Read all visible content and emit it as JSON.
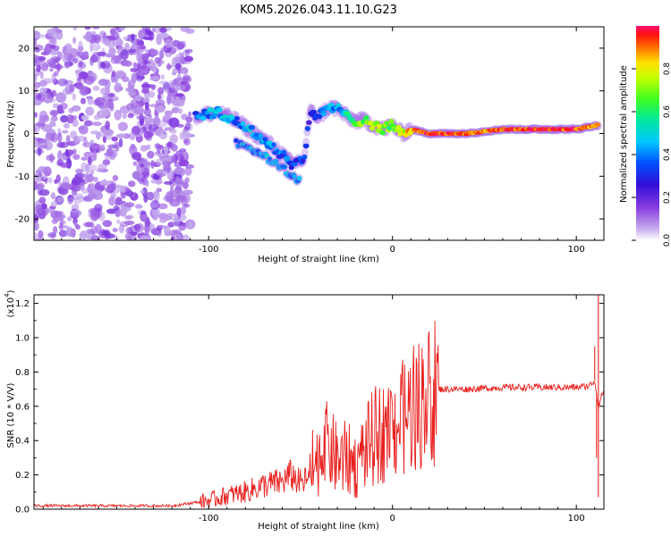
{
  "title": "KOM5.2026.043.11.10.G23",
  "colors": {
    "accent_line": "#e8201e",
    "axis": "#000000",
    "spec_weak": "#b58ee8",
    "spec_mid": "#6a18d8"
  },
  "chart_data": [
    {
      "type": "heatmap",
      "name": "spectrogram",
      "title": "KOM5.2026.043.11.10.G23",
      "xlabel": "Height of straight line (km)",
      "ylabel": "Frequency (Hz)",
      "xlim": [
        -195,
        115
      ],
      "ylim": [
        -25,
        25
      ],
      "xticks": [
        -100,
        0,
        100
      ],
      "yticks": [
        -20,
        -10,
        0,
        10,
        20
      ],
      "xtick_labels": [
        "-100",
        "0",
        "100"
      ],
      "ytick_labels": [
        "-20",
        "-10",
        "0",
        "10",
        "20"
      ],
      "colorbar": {
        "label": "Normalized spectral amplitude",
        "range": [
          0,
          1
        ],
        "ticks": [
          0.0,
          0.2,
          0.4,
          0.6,
          0.8
        ],
        "tick_labels": [
          "0.0",
          "0.2",
          "0.4",
          "0.6",
          "0.8"
        ]
      },
      "noise_region_x": [
        -195,
        -110
      ],
      "signal_track": {
        "x": [
          -107,
          -95,
          -85,
          -75,
          -65,
          -55,
          -48,
          -45,
          -40,
          -35,
          -30,
          -25,
          -20,
          -15,
          -10,
          -5,
          0,
          5,
          10,
          20,
          40,
          60,
          80,
          100,
          112
        ],
        "freq": [
          4,
          5,
          3,
          0,
          -3,
          -7,
          -6,
          5,
          4,
          6,
          6,
          4,
          3,
          3,
          2,
          1,
          2,
          0,
          1,
          0,
          0,
          1,
          1,
          1,
          2
        ],
        "amplitude": [
          0.35,
          0.45,
          0.4,
          0.45,
          0.4,
          0.35,
          0.3,
          0.3,
          0.35,
          0.4,
          0.4,
          0.55,
          0.65,
          0.7,
          0.75,
          0.7,
          0.65,
          0.75,
          0.85,
          0.95,
          0.9,
          0.9,
          0.95,
          0.95,
          0.8
        ]
      },
      "secondary_track": {
        "x": [
          -85,
          -70,
          -60,
          -55,
          -50
        ],
        "freq": [
          -2,
          -5,
          -8,
          -10,
          -11
        ]
      }
    },
    {
      "type": "line",
      "name": "snr",
      "xlabel": "Height of straight line (km)",
      "ylabel": "SNR (10 * V/V)",
      "scale_label": "(x10",
      "scale_exp": "4",
      "xlim": [
        -195,
        115
      ],
      "ylim": [
        0,
        1.25
      ],
      "xticks": [
        -100,
        0,
        100
      ],
      "yticks": [
        0.0,
        0.2,
        0.4,
        0.6,
        0.8,
        1.0,
        1.2
      ],
      "xtick_labels": [
        "-100",
        "0",
        "100"
      ],
      "ytick_labels": [
        "0.0",
        "0.2",
        "0.4",
        "0.6",
        "0.8",
        "1.0",
        "1.2"
      ],
      "series": [
        {
          "name": "SNR",
          "color": "#e8201e",
          "x": [
            -195,
            -150,
            -120,
            -100,
            -90,
            -80,
            -70,
            -60,
            -55,
            -50,
            -45,
            -40,
            -35,
            -30,
            -25,
            -20,
            -15,
            -10,
            -5,
            0,
            5,
            10,
            15,
            20,
            25,
            30,
            40,
            60,
            80,
            100,
            107,
            110,
            112,
            115
          ],
          "y": [
            0.02,
            0.02,
            0.02,
            0.05,
            0.08,
            0.1,
            0.14,
            0.16,
            0.2,
            0.15,
            0.18,
            0.3,
            0.38,
            0.28,
            0.3,
            0.25,
            0.35,
            0.42,
            0.45,
            0.48,
            0.52,
            0.58,
            0.62,
            0.66,
            0.7,
            0.7,
            0.7,
            0.71,
            0.71,
            0.71,
            0.72,
            0.75,
            0.6,
            0.7
          ],
          "spikes": [
            {
              "x": 112,
              "y": 1.25
            },
            {
              "x": 110,
              "y": 0.95
            },
            {
              "x": 112,
              "y": 0.07
            },
            {
              "x": 111,
              "y": 0.3
            }
          ]
        }
      ]
    }
  ]
}
